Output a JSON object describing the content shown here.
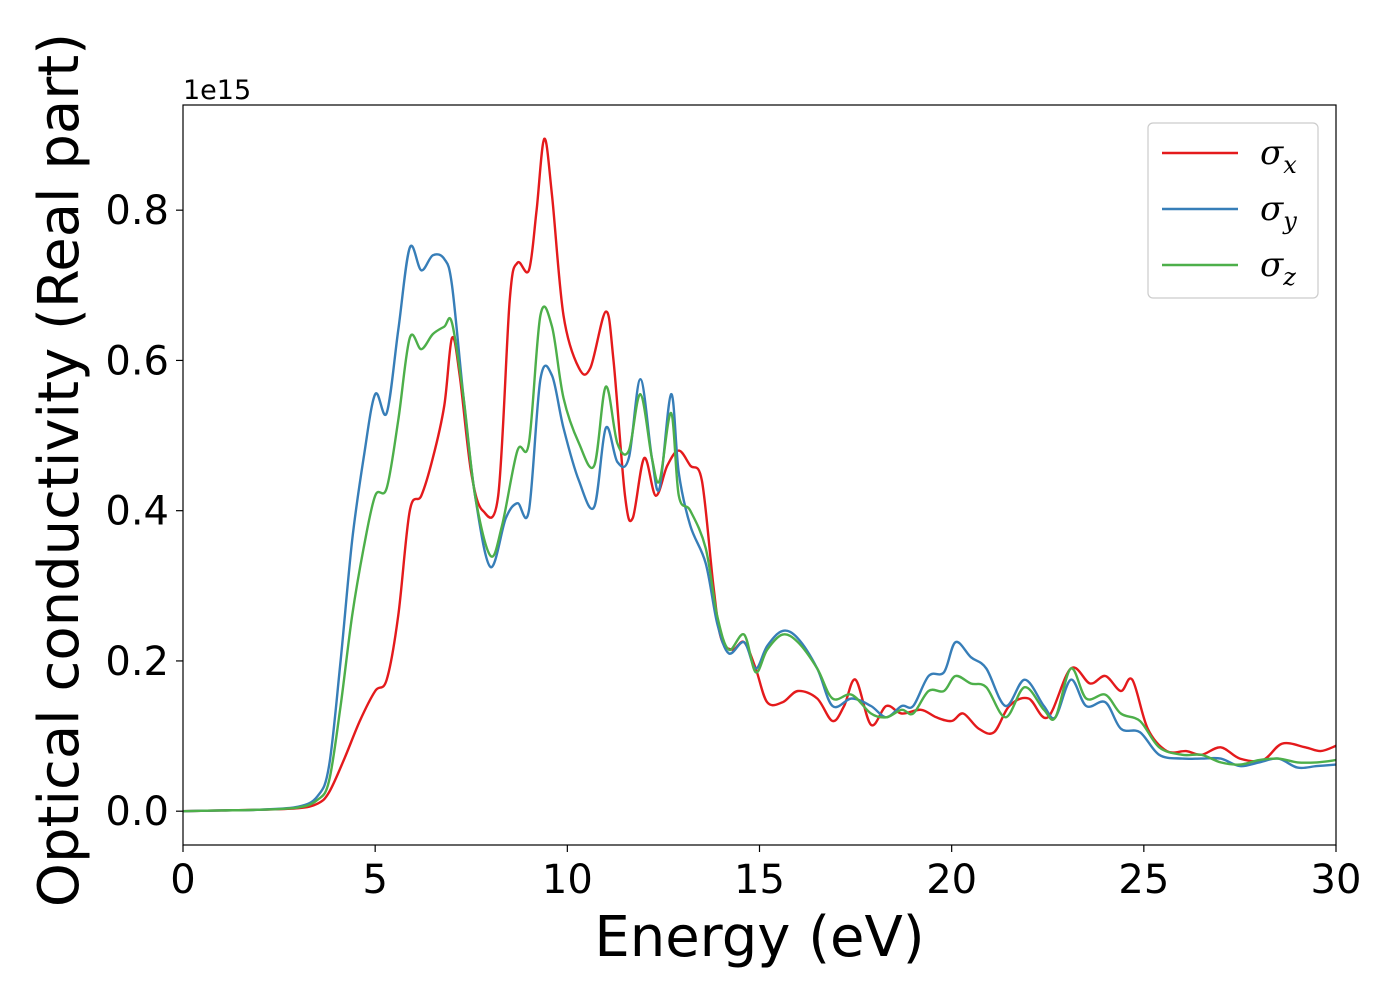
{
  "chart_data": {
    "type": "line",
    "title": "",
    "xlabel": "Energy (eV)",
    "ylabel": "Optical conductivity (Real part)",
    "offset_text": "1e15",
    "xlim": [
      0,
      30
    ],
    "ylim": [
      -0.045,
      0.94
    ],
    "scale_factor": "1e15",
    "xticks": [
      0,
      5,
      10,
      15,
      20,
      25,
      30
    ],
    "xtick_labels": [
      "0",
      "5",
      "10",
      "15",
      "20",
      "25",
      "30"
    ],
    "yticks": [
      0.0,
      0.2,
      0.4,
      0.6,
      0.8
    ],
    "ytick_labels": [
      "0.0",
      "0.2",
      "0.4",
      "0.6",
      "0.8"
    ],
    "grid": false,
    "legend": "top-right",
    "series": [
      {
        "name": "σ",
        "subscript": "x",
        "color": "#e41a1c",
        "points": [
          [
            0,
            0
          ],
          [
            1,
            0.001
          ],
          [
            2,
            0.002
          ],
          [
            3,
            0.004
          ],
          [
            3.5,
            0.01
          ],
          [
            3.8,
            0.025
          ],
          [
            4.2,
            0.07
          ],
          [
            4.6,
            0.12
          ],
          [
            5.0,
            0.16
          ],
          [
            5.3,
            0.175
          ],
          [
            5.6,
            0.26
          ],
          [
            5.9,
            0.4
          ],
          [
            6.2,
            0.42
          ],
          [
            6.5,
            0.47
          ],
          [
            6.8,
            0.54
          ],
          [
            7.0,
            0.63
          ],
          [
            7.2,
            0.58
          ],
          [
            7.5,
            0.45
          ],
          [
            7.8,
            0.4
          ],
          [
            8.2,
            0.42
          ],
          [
            8.5,
            0.68
          ],
          [
            8.7,
            0.73
          ],
          [
            9.0,
            0.72
          ],
          [
            9.2,
            0.8
          ],
          [
            9.4,
            0.895
          ],
          [
            9.6,
            0.82
          ],
          [
            9.9,
            0.66
          ],
          [
            10.3,
            0.59
          ],
          [
            10.6,
            0.59
          ],
          [
            11.0,
            0.665
          ],
          [
            11.2,
            0.6
          ],
          [
            11.5,
            0.42
          ],
          [
            11.7,
            0.39
          ],
          [
            12.0,
            0.47
          ],
          [
            12.3,
            0.42
          ],
          [
            12.6,
            0.46
          ],
          [
            12.9,
            0.48
          ],
          [
            13.2,
            0.46
          ],
          [
            13.5,
            0.44
          ],
          [
            13.8,
            0.3
          ],
          [
            14.0,
            0.23
          ],
          [
            14.3,
            0.215
          ],
          [
            14.6,
            0.225
          ],
          [
            14.9,
            0.19
          ],
          [
            15.2,
            0.145
          ],
          [
            15.6,
            0.145
          ],
          [
            16.0,
            0.16
          ],
          [
            16.5,
            0.15
          ],
          [
            16.9,
            0.12
          ],
          [
            17.2,
            0.14
          ],
          [
            17.5,
            0.175
          ],
          [
            17.9,
            0.115
          ],
          [
            18.3,
            0.14
          ],
          [
            18.7,
            0.13
          ],
          [
            19.2,
            0.135
          ],
          [
            19.6,
            0.125
          ],
          [
            20.0,
            0.12
          ],
          [
            20.3,
            0.13
          ],
          [
            20.7,
            0.11
          ],
          [
            21.1,
            0.105
          ],
          [
            21.5,
            0.14
          ],
          [
            22.0,
            0.15
          ],
          [
            22.5,
            0.125
          ],
          [
            23.1,
            0.19
          ],
          [
            23.6,
            0.17
          ],
          [
            24.0,
            0.18
          ],
          [
            24.4,
            0.16
          ],
          [
            24.7,
            0.175
          ],
          [
            25.1,
            0.11
          ],
          [
            25.6,
            0.08
          ],
          [
            26.1,
            0.08
          ],
          [
            26.5,
            0.075
          ],
          [
            27.0,
            0.085
          ],
          [
            27.5,
            0.07
          ],
          [
            28.1,
            0.068
          ],
          [
            28.6,
            0.09
          ],
          [
            29.2,
            0.085
          ],
          [
            29.6,
            0.08
          ],
          [
            30,
            0.087
          ]
        ]
      },
      {
        "name": "σ",
        "subscript": "y",
        "color": "#377eb8",
        "points": [
          [
            0,
            0
          ],
          [
            1,
            0.001
          ],
          [
            2,
            0.002
          ],
          [
            3,
            0.006
          ],
          [
            3.5,
            0.02
          ],
          [
            3.8,
            0.06
          ],
          [
            4.1,
            0.2
          ],
          [
            4.4,
            0.36
          ],
          [
            4.7,
            0.47
          ],
          [
            5.0,
            0.555
          ],
          [
            5.3,
            0.53
          ],
          [
            5.6,
            0.64
          ],
          [
            5.9,
            0.75
          ],
          [
            6.2,
            0.72
          ],
          [
            6.5,
            0.74
          ],
          [
            6.8,
            0.735
          ],
          [
            7.0,
            0.7
          ],
          [
            7.3,
            0.55
          ],
          [
            7.6,
            0.42
          ],
          [
            8.0,
            0.325
          ],
          [
            8.4,
            0.39
          ],
          [
            8.7,
            0.41
          ],
          [
            9.0,
            0.4
          ],
          [
            9.3,
            0.575
          ],
          [
            9.6,
            0.58
          ],
          [
            9.9,
            0.51
          ],
          [
            10.3,
            0.44
          ],
          [
            10.7,
            0.405
          ],
          [
            11.0,
            0.51
          ],
          [
            11.3,
            0.465
          ],
          [
            11.6,
            0.47
          ],
          [
            11.9,
            0.575
          ],
          [
            12.2,
            0.47
          ],
          [
            12.4,
            0.43
          ],
          [
            12.7,
            0.555
          ],
          [
            12.9,
            0.45
          ],
          [
            13.2,
            0.38
          ],
          [
            13.6,
            0.33
          ],
          [
            13.9,
            0.25
          ],
          [
            14.2,
            0.21
          ],
          [
            14.6,
            0.225
          ],
          [
            14.9,
            0.19
          ],
          [
            15.2,
            0.22
          ],
          [
            15.6,
            0.24
          ],
          [
            16.0,
            0.23
          ],
          [
            16.5,
            0.19
          ],
          [
            16.9,
            0.14
          ],
          [
            17.4,
            0.15
          ],
          [
            17.9,
            0.14
          ],
          [
            18.3,
            0.125
          ],
          [
            18.7,
            0.14
          ],
          [
            19.0,
            0.14
          ],
          [
            19.4,
            0.18
          ],
          [
            19.8,
            0.185
          ],
          [
            20.1,
            0.225
          ],
          [
            20.5,
            0.205
          ],
          [
            20.9,
            0.19
          ],
          [
            21.4,
            0.14
          ],
          [
            21.9,
            0.175
          ],
          [
            22.4,
            0.14
          ],
          [
            22.7,
            0.125
          ],
          [
            23.1,
            0.175
          ],
          [
            23.5,
            0.14
          ],
          [
            24.0,
            0.145
          ],
          [
            24.4,
            0.11
          ],
          [
            24.9,
            0.105
          ],
          [
            25.4,
            0.075
          ],
          [
            26.0,
            0.07
          ],
          [
            26.5,
            0.07
          ],
          [
            27.0,
            0.07
          ],
          [
            27.5,
            0.06
          ],
          [
            28.0,
            0.065
          ],
          [
            28.5,
            0.07
          ],
          [
            29.0,
            0.058
          ],
          [
            29.5,
            0.06
          ],
          [
            30,
            0.062
          ]
        ]
      },
      {
        "name": "σ",
        "subscript": "z",
        "color": "#4daf4a",
        "points": [
          [
            0,
            0
          ],
          [
            1,
            0.001
          ],
          [
            2,
            0.002
          ],
          [
            3,
            0.005
          ],
          [
            3.5,
            0.015
          ],
          [
            3.8,
            0.04
          ],
          [
            4.1,
            0.14
          ],
          [
            4.4,
            0.26
          ],
          [
            4.7,
            0.35
          ],
          [
            5.0,
            0.42
          ],
          [
            5.3,
            0.43
          ],
          [
            5.6,
            0.52
          ],
          [
            5.9,
            0.63
          ],
          [
            6.2,
            0.615
          ],
          [
            6.5,
            0.635
          ],
          [
            6.8,
            0.645
          ],
          [
            7.0,
            0.65
          ],
          [
            7.3,
            0.55
          ],
          [
            7.6,
            0.42
          ],
          [
            8.0,
            0.34
          ],
          [
            8.3,
            0.38
          ],
          [
            8.7,
            0.48
          ],
          [
            9.0,
            0.49
          ],
          [
            9.3,
            0.66
          ],
          [
            9.6,
            0.645
          ],
          [
            9.9,
            0.55
          ],
          [
            10.3,
            0.49
          ],
          [
            10.7,
            0.46
          ],
          [
            11.0,
            0.565
          ],
          [
            11.3,
            0.49
          ],
          [
            11.6,
            0.48
          ],
          [
            11.9,
            0.555
          ],
          [
            12.2,
            0.47
          ],
          [
            12.4,
            0.44
          ],
          [
            12.7,
            0.53
          ],
          [
            12.9,
            0.42
          ],
          [
            13.2,
            0.4
          ],
          [
            13.6,
            0.35
          ],
          [
            13.9,
            0.26
          ],
          [
            14.2,
            0.215
          ],
          [
            14.6,
            0.235
          ],
          [
            14.9,
            0.185
          ],
          [
            15.2,
            0.215
          ],
          [
            15.6,
            0.235
          ],
          [
            16.0,
            0.225
          ],
          [
            16.5,
            0.19
          ],
          [
            16.9,
            0.15
          ],
          [
            17.4,
            0.155
          ],
          [
            17.9,
            0.13
          ],
          [
            18.3,
            0.125
          ],
          [
            18.7,
            0.135
          ],
          [
            19.0,
            0.13
          ],
          [
            19.4,
            0.16
          ],
          [
            19.8,
            0.16
          ],
          [
            20.1,
            0.18
          ],
          [
            20.5,
            0.17
          ],
          [
            20.9,
            0.165
          ],
          [
            21.4,
            0.125
          ],
          [
            21.9,
            0.165
          ],
          [
            22.4,
            0.135
          ],
          [
            22.7,
            0.125
          ],
          [
            23.1,
            0.19
          ],
          [
            23.5,
            0.15
          ],
          [
            24.0,
            0.155
          ],
          [
            24.4,
            0.13
          ],
          [
            24.9,
            0.12
          ],
          [
            25.4,
            0.085
          ],
          [
            26.0,
            0.075
          ],
          [
            26.5,
            0.075
          ],
          [
            27.0,
            0.065
          ],
          [
            27.5,
            0.062
          ],
          [
            28.0,
            0.068
          ],
          [
            28.5,
            0.07
          ],
          [
            29.0,
            0.065
          ],
          [
            29.5,
            0.065
          ],
          [
            30,
            0.068
          ]
        ]
      }
    ]
  }
}
